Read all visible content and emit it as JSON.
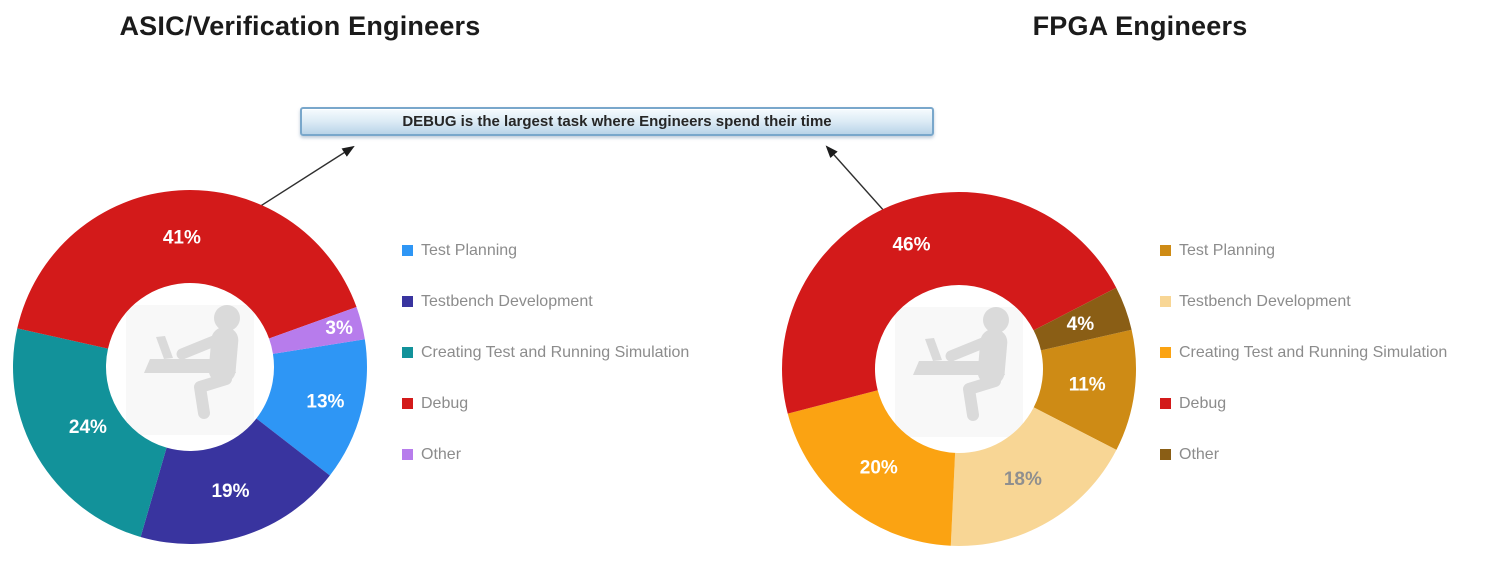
{
  "banner": {
    "text": "DEBUG is the largest task where Engineers spend their time"
  },
  "styles": {
    "title_color": "#1b1b1b",
    "legend_text_color": "#8c8c8c",
    "banner_border_color": "#79a7cb",
    "banner_bg_top": "#f6fbfe",
    "banner_bg_bottom": "#b9d3e8",
    "arrow_color": "#2f2f2f",
    "center_icon_color": "#dadada",
    "debug_red": "#d31a1a"
  },
  "chart_data": [
    {
      "type": "pie",
      "subtype": "donut",
      "title": "ASIC/Verification Engineers",
      "categories": [
        "Test Planning",
        "Testbench Development",
        "Creating Test and Running Simulation",
        "Debug",
        "Other"
      ],
      "values": [
        13,
        19,
        24,
        41,
        3
      ],
      "data_labels": [
        "13%",
        "19%",
        "24%",
        "41%",
        "3%"
      ],
      "colors": [
        "#2e96f5",
        "#39349f",
        "#12929a",
        "#d31a1a",
        "#b77cec"
      ],
      "label_colors": [
        "#ffffff",
        "#ffffff",
        "#ffffff",
        "#ffffff",
        "#ffffff"
      ],
      "label_radius": [
        0.79,
        0.74,
        0.67,
        0.73,
        0.87
      ],
      "start_angle": 81,
      "legend_position": "right",
      "center_icon": "person-at-desk",
      "annotation": "DEBUG is the largest task where Engineers spend their time"
    },
    {
      "type": "pie",
      "subtype": "donut",
      "title": "FPGA Engineers",
      "categories": [
        "Test Planning",
        "Testbench Development",
        "Creating Test and Running Simulation",
        "Debug",
        "Other"
      ],
      "values": [
        11,
        18,
        20,
        46,
        4
      ],
      "data_labels": [
        "11%",
        "18%",
        "20%",
        "46%",
        "4%"
      ],
      "colors": [
        "#ce8b15",
        "#f8d695",
        "#fba312",
        "#d31a1a",
        "#8a5e15"
      ],
      "label_colors": [
        "#ffffff",
        "#8f8f8f",
        "#ffffff",
        "#ffffff",
        "#ffffff"
      ],
      "label_radius": [
        0.73,
        0.72,
        0.72,
        0.75,
        0.73
      ],
      "start_angle": 77.2,
      "legend_position": "right",
      "center_icon": "person-at-desk",
      "annotation": "DEBUG is the largest task where Engineers spend their time"
    }
  ]
}
